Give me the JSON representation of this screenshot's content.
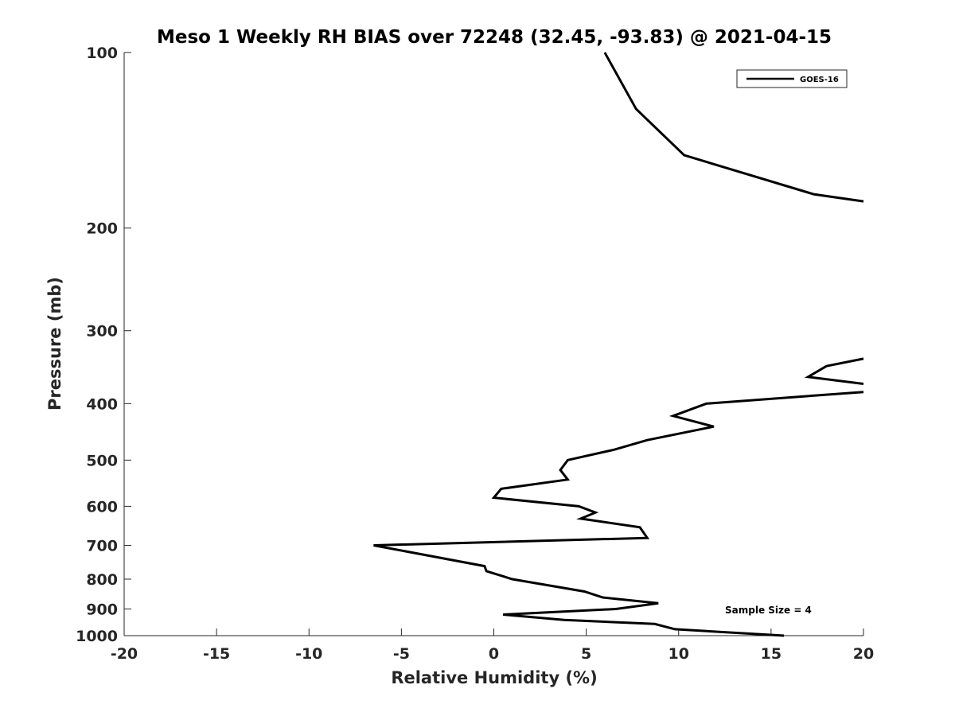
{
  "chart_data": {
    "type": "line",
    "title": "Meso 1 Weekly RH BIAS over 72248 (32.45, -93.83) @ 2021-04-15",
    "xlabel": "Relative Humidity (%)",
    "ylabel": "Pressure (mb)",
    "xlim": [
      -20,
      20
    ],
    "ylim": [
      1000,
      100
    ],
    "y_scale": "log",
    "y_reversed": true,
    "x_ticks": [
      -20,
      -15,
      -10,
      -5,
      0,
      5,
      10,
      15,
      20
    ],
    "x_tick_labels": [
      "-20",
      "-15",
      "-10",
      "-5",
      "0",
      "5",
      "10",
      "15",
      "20"
    ],
    "y_ticks": [
      100,
      200,
      300,
      400,
      500,
      600,
      700,
      800,
      900,
      1000
    ],
    "y_tick_labels": [
      "100",
      "200",
      "300",
      "400",
      "500",
      "600",
      "700",
      "800",
      "900",
      "1000"
    ],
    "grid": false,
    "legend": {
      "position": "top-right",
      "entries": [
        "GOES-16"
      ]
    },
    "annotation": "Sample Size = 4",
    "series": [
      {
        "name": "GOES-16",
        "color": "#000000",
        "segments": [
          {
            "x": [
              6,
              7.7,
              10.3,
              17.3,
              20
            ],
            "y": [
              100,
              125,
              150,
              175,
              180
            ]
          },
          {
            "x": [
              20,
              18,
              17,
              20
            ],
            "y": [
              335,
              345,
              360,
              370
            ]
          },
          {
            "x": [
              20,
              11.5,
              9.7,
              11.9,
              8.3,
              6.5,
              4,
              3.6,
              4,
              0.4,
              0,
              4.6,
              5.5,
              4.7,
              7.9,
              8.3,
              -6.5,
              -0.5,
              -0.4,
              1,
              4.9,
              5.9,
              8.9,
              6.6,
              0.5,
              3.8,
              8.7,
              9.8,
              15.7
            ],
            "y": [
              382,
              400,
              420,
              438,
              462,
              480,
              500,
              520,
              540,
              560,
              580,
              600,
              615,
              630,
              652,
              680,
              700,
              760,
              775,
              800,
              840,
              860,
              880,
              900,
              920,
              940,
              955,
              975,
              1000
            ]
          }
        ]
      }
    ]
  }
}
